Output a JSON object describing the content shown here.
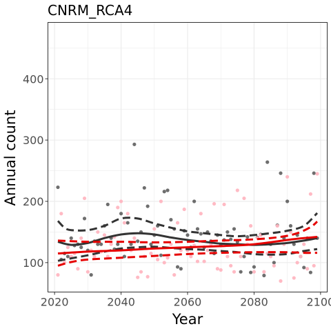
{
  "chart_data": {
    "type": "scatter",
    "title": "CNRM_RCA4",
    "xlabel": "Year",
    "ylabel": "Annual count",
    "xlim": [
      2018,
      2102
    ],
    "ylim": [
      52,
      492
    ],
    "x_ticks": [
      2020,
      2040,
      2060,
      2080,
      2100
    ],
    "y_ticks": [
      100,
      200,
      300,
      400
    ],
    "grid": true,
    "legend": "none",
    "colors": {
      "dark_points": "#555555",
      "pink_points": "#ffb6c1",
      "dark_lines": "#333333",
      "red_lines": "#e60000",
      "grid": "#ebebeb",
      "panel_border": "#333333"
    },
    "series": [
      {
        "kind": "points",
        "color_key": "dark_points",
        "x": [
          2021,
          2022,
          2023,
          2024,
          2025,
          2026,
          2027,
          2028,
          2029,
          2030,
          2031,
          2032,
          2033,
          2034,
          2035,
          2036,
          2037,
          2038,
          2039,
          2040,
          2041,
          2042,
          2043,
          2044,
          2045,
          2046,
          2047,
          2048,
          2049,
          2050,
          2051,
          2052,
          2053,
          2054,
          2055,
          2056,
          2057,
          2058,
          2059,
          2060,
          2061,
          2062,
          2063,
          2064,
          2065,
          2066,
          2067,
          2068,
          2069,
          2070,
          2071,
          2072,
          2073,
          2074,
          2075,
          2076,
          2077,
          2078,
          2079,
          2080,
          2081,
          2082,
          2083,
          2084,
          2085,
          2086,
          2087,
          2088,
          2089,
          2090,
          2091,
          2092,
          2093,
          2094,
          2095,
          2096,
          2097,
          2098,
          2099
        ],
        "y": [
          223,
          105,
          115,
          110,
          140,
          128,
          130,
          125,
          172,
          120,
          80,
          135,
          130,
          130,
          160,
          195,
          140,
          122,
          130,
          180,
          110,
          165,
          130,
          293,
          135,
          150,
          222,
          192,
          130,
          145,
          160,
          112,
          216,
          218,
          170,
          155,
          93,
          90,
          152,
          145,
          125,
          200,
          155,
          147,
          125,
          150,
          135,
          115,
          145,
          128,
          137,
          150,
          138,
          155,
          134,
          85,
          110,
          142,
          84,
          93,
          141,
          146,
          79,
          264,
          130,
          100,
          161,
          246,
          140,
          200,
          160,
          130,
          145,
          110,
          92,
          140,
          84,
          246,
          140
        ]
      },
      {
        "kind": "points",
        "color_key": "pink_points",
        "x": [
          2021,
          2022,
          2023,
          2024,
          2025,
          2026,
          2027,
          2028,
          2029,
          2030,
          2031,
          2032,
          2033,
          2034,
          2035,
          2036,
          2037,
          2038,
          2039,
          2040,
          2041,
          2042,
          2043,
          2044,
          2045,
          2046,
          2047,
          2048,
          2049,
          2050,
          2051,
          2052,
          2053,
          2054,
          2055,
          2056,
          2057,
          2058,
          2059,
          2060,
          2061,
          2062,
          2063,
          2064,
          2065,
          2066,
          2067,
          2068,
          2069,
          2070,
          2071,
          2072,
          2073,
          2074,
          2075,
          2076,
          2077,
          2078,
          2079,
          2080,
          2081,
          2082,
          2083,
          2084,
          2085,
          2086,
          2087,
          2088,
          2089,
          2090,
          2091,
          2092,
          2093,
          2094,
          2095,
          2096,
          2097,
          2098,
          2099
        ],
        "y": [
          80,
          180,
          100,
          125,
          110,
          115,
          90,
          140,
          205,
          85,
          120,
          110,
          150,
          118,
          145,
          110,
          130,
          142,
          190,
          200,
          165,
          180,
          120,
          140,
          76,
          85,
          110,
          77,
          115,
          155,
          105,
          200,
          100,
          108,
          130,
          80,
          165,
          120,
          187,
          120,
          110,
          128,
          102,
          180,
          102,
          120,
          130,
          196,
          90,
          88,
          195,
          110,
          95,
          85,
          218,
          110,
          205,
          130,
          160,
          85,
          140,
          145,
          85,
          115,
          110,
          95,
          160,
          70,
          130,
          240,
          150,
          75,
          100,
          110,
          130,
          90,
          212,
          95,
          245
        ]
      },
      {
        "kind": "line",
        "style": "solid",
        "color_key": "dark_lines",
        "x": [
          2021,
          2025,
          2030,
          2035,
          2040,
          2045,
          2050,
          2055,
          2060,
          2065,
          2070,
          2075,
          2080,
          2085,
          2090,
          2095,
          2099
        ],
        "y": [
          134,
          129,
          132,
          140,
          146,
          148,
          146,
          141,
          137,
          134,
          131,
          130,
          129,
          130,
          132,
          136,
          140
        ]
      },
      {
        "kind": "line",
        "style": "dashed",
        "color_key": "dark_lines",
        "x": [
          2021,
          2023,
          2025,
          2030,
          2035,
          2040,
          2045,
          2050,
          2055,
          2060,
          2065,
          2070,
          2075,
          2080,
          2085,
          2090,
          2095,
          2099
        ],
        "y": [
          168,
          157,
          153,
          153,
          160,
          172,
          172,
          164,
          157,
          151,
          148,
          145,
          143,
          145,
          148,
          152,
          160,
          181
        ]
      },
      {
        "kind": "line",
        "style": "dashed",
        "color_key": "dark_lines",
        "x": [
          2021,
          2025,
          2030,
          2035,
          2040,
          2045,
          2050,
          2055,
          2060,
          2065,
          2070,
          2075,
          2080,
          2085,
          2090,
          2095,
          2099
        ],
        "y": [
          103,
          107,
          112,
          118,
          123,
          125,
          126,
          124,
          122,
          121,
          119,
          117,
          114,
          113,
          114,
          119,
          122
        ]
      },
      {
        "kind": "line",
        "style": "solid",
        "color_key": "red_lines",
        "x": [
          2021,
          2030,
          2040,
          2050,
          2060,
          2070,
          2080,
          2090,
          2095,
          2099
        ],
        "y": [
          115,
          118,
          120,
          123,
          125,
          127,
          130,
          137,
          140,
          142
        ]
      },
      {
        "kind": "line",
        "style": "dashed",
        "color_key": "red_lines",
        "x": [
          2021,
          2030,
          2040,
          2050,
          2060,
          2070,
          2080,
          2088,
          2093,
          2097,
          2099
        ],
        "y": [
          136,
          134,
          134,
          133,
          134,
          136,
          138,
          142,
          148,
          158,
          167
        ]
      },
      {
        "kind": "line",
        "style": "dashed",
        "color_key": "red_lines",
        "x": [
          2021,
          2025,
          2030,
          2040,
          2050,
          2060,
          2070,
          2080,
          2090,
          2095,
          2099
        ],
        "y": [
          95,
          101,
          105,
          108,
          111,
          114,
          116,
          117,
          117,
          116,
          116
        ]
      }
    ]
  }
}
